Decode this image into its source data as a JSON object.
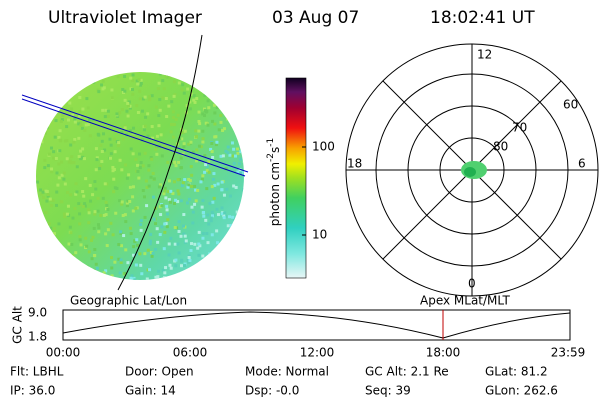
{
  "header": {
    "instrument": "Ultraviolet Imager",
    "date": "03 Aug 07",
    "time": "18:02:41 UT"
  },
  "colorbar": {
    "label": "photon cm",
    "exp1": "-2",
    "unit2": "s",
    "exp2": "-1",
    "ticks": [
      "100",
      "10"
    ]
  },
  "polar": {
    "mlt": [
      "12",
      "18",
      "6",
      "0"
    ],
    "mlat": [
      "60",
      "70",
      "80"
    ]
  },
  "timeline": {
    "left_title": "Geographic Lat/Lon",
    "right_title": "Apex MLat/MLT",
    "axis_label": "GC Alt",
    "alt_ticks": [
      "9.0",
      "1.8"
    ],
    "times": [
      "00:00",
      "06:00",
      "12:00",
      "18:00",
      "23:59"
    ]
  },
  "info": [
    [
      "Flt: LBHL",
      "Door: Open",
      "Mode: Normal",
      "GC Alt: 2.1 Re",
      "GLat: 81.2"
    ],
    [
      "IP: 36.0",
      "Gain: 14",
      "Dsp: -0.0",
      "Seq: 39",
      "GLon: 262.6"
    ]
  ]
}
